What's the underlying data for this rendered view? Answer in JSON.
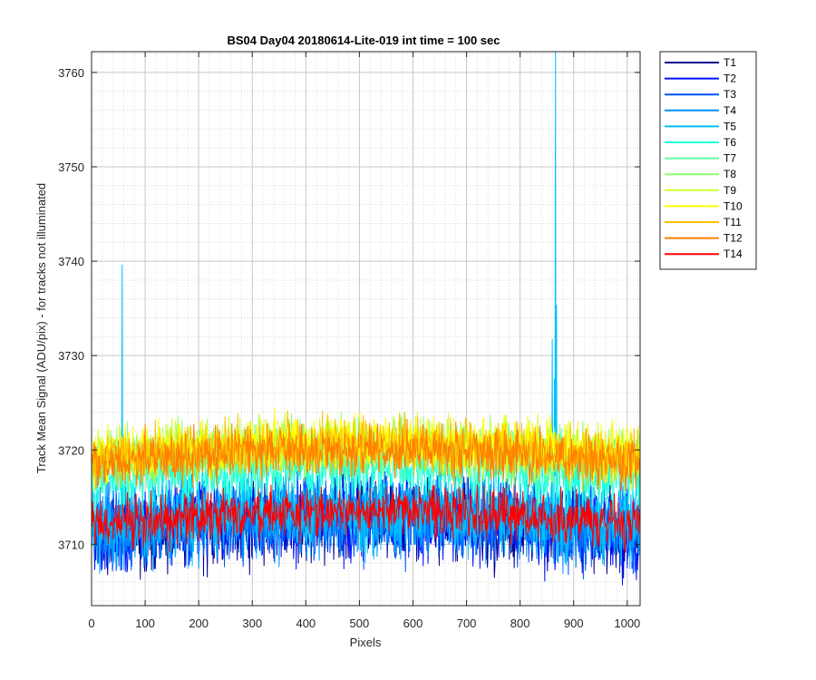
{
  "chart_data": {
    "type": "line",
    "title": "BS04 Day04 20180614-Lite-019 int time = 100 sec",
    "xlabel": "Pixels",
    "ylabel": "Track Mean Signal (ADU/pix) - for tracks not illuminated",
    "xlim": [
      0,
      1024
    ],
    "ylim": [
      3703.5,
      3762.2
    ],
    "xticks": [
      0,
      100,
      200,
      300,
      400,
      500,
      600,
      700,
      800,
      900,
      1000
    ],
    "yticks": [
      3710,
      3720,
      3730,
      3740,
      3750,
      3760
    ],
    "grid": true,
    "minor_grid": true,
    "legend_position": "outside-right",
    "series": [
      {
        "name": "T1",
        "color": "#00008f",
        "mean": 3711.0,
        "noise": 2.8,
        "bulge": 1.5
      },
      {
        "name": "T2",
        "color": "#0010ff",
        "mean": 3711.3,
        "noise": 2.8,
        "bulge": 1.5
      },
      {
        "name": "T3",
        "color": "#0050ff",
        "mean": 3711.5,
        "noise": 2.8,
        "bulge": 1.5
      },
      {
        "name": "T4",
        "color": "#0090ff",
        "mean": 3711.7,
        "noise": 2.8,
        "bulge": 1.5
      },
      {
        "name": "T5",
        "color": "#00c0ff",
        "mean": 3712.0,
        "noise": 2.8,
        "bulge": 1.5,
        "spikes": [
          {
            "x": 57,
            "y": 3739.6
          },
          {
            "x": 860,
            "y": 3731.7
          },
          {
            "x": 864,
            "y": 3727.5
          },
          {
            "x": 866,
            "y": 3762.2
          },
          {
            "x": 868,
            "y": 3735.3
          }
        ]
      },
      {
        "name": "T6",
        "color": "#20ffdf",
        "mean": 3716.5,
        "noise": 2.2,
        "bulge": 1.5
      },
      {
        "name": "T7",
        "color": "#60ffa0",
        "mean": 3718.5,
        "noise": 1.9,
        "bulge": 1.5
      },
      {
        "name": "T8",
        "color": "#90ff70",
        "mean": 3719.0,
        "noise": 1.9,
        "bulge": 1.5
      },
      {
        "name": "T9",
        "color": "#d0ff30",
        "mean": 3719.2,
        "noise": 1.9,
        "bulge": 1.5
      },
      {
        "name": "T10",
        "color": "#ffff00",
        "mean": 3719.4,
        "noise": 1.9,
        "bulge": 1.5
      },
      {
        "name": "T11",
        "color": "#ffc000",
        "mean": 3719.0,
        "noise": 1.9,
        "bulge": 1.5
      },
      {
        "name": "T12",
        "color": "#ff8000",
        "mean": 3718.6,
        "noise": 1.8,
        "bulge": 1.5
      },
      {
        "name": "T14",
        "color": "#ff0000",
        "mean": 3712.0,
        "noise": 1.7,
        "bulge": 1.5
      }
    ]
  }
}
